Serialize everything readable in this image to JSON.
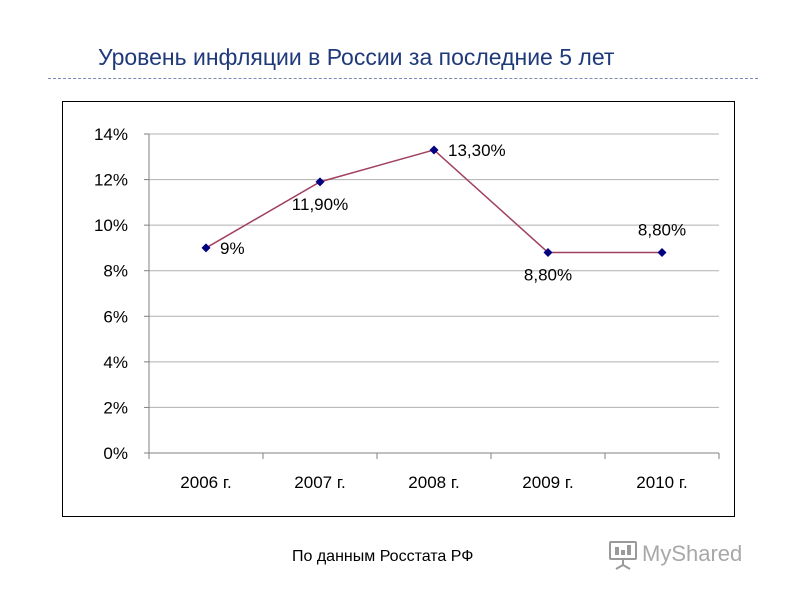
{
  "title": "Уровень инфляции в России за последние 5 лет",
  "source_note": "По данным Росстата РФ",
  "watermark": {
    "text": "MyShared",
    "icon": "projector-screen-icon"
  },
  "colors": {
    "title": "#1F3A7A",
    "line": "#A04060",
    "marker": "#000080",
    "grid": "#B0B0B0",
    "axis": "#808080"
  },
  "chart_data": {
    "type": "line",
    "title": "",
    "xlabel": "",
    "ylabel": "",
    "categories": [
      "2006 г.",
      "2007 г.",
      "2008 г.",
      "2009 г.",
      "2010 г."
    ],
    "values": [
      9.0,
      11.9,
      13.3,
      8.8,
      8.8
    ],
    "data_labels": [
      "9%",
      "11,90%",
      "13,30%",
      "8,80%",
      "8,80%"
    ],
    "data_label_positions": [
      "right",
      "below",
      "right",
      "below",
      "above"
    ],
    "ylim": [
      0,
      14
    ],
    "yticks": [
      0,
      2,
      4,
      6,
      8,
      10,
      12,
      14
    ],
    "ytick_labels": [
      "0%",
      "2%",
      "4%",
      "6%",
      "8%",
      "10%",
      "12%",
      "14%"
    ],
    "grid": true,
    "legend": "none"
  }
}
